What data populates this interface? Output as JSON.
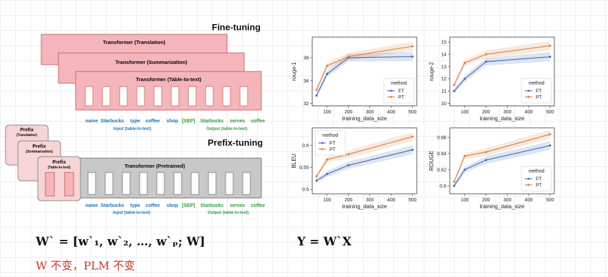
{
  "diagram": {
    "finetune_title": "Fine-tuning",
    "prefixtune_title": "Prefix-tuning",
    "transformers": [
      "Transformer (Translation)",
      "Transformer (Summarization)",
      "Transformer (Table-to-text)"
    ],
    "pretrained": "Transformer (Pretrained)",
    "prefixes": [
      {
        "title": "Prefix",
        "sub": "(Translation)"
      },
      {
        "title": "Prefix",
        "sub": "(Summarization)"
      },
      {
        "title": "Prefix",
        "sub": "(Table-to-text)"
      }
    ],
    "input_tokens": [
      "name",
      "Starbucks",
      "type",
      "coffee",
      "shop"
    ],
    "sep_token": "[SEP]",
    "output_tokens": [
      "Starbucks",
      "serves",
      "coffee"
    ],
    "input_label": "Input (table-to-text)",
    "output_label": "Output (table-to-text)",
    "colors": {
      "finetune_fill": "#f4b6bb",
      "finetune_stroke": "#c66",
      "prefix_fill": "#f4b6bb",
      "pretrained_fill": "#c8c8c8",
      "input": "#1b75bb",
      "output": "#2e9e3a",
      "ft": "#4a6fb5",
      "pt": "#d9834a"
    }
  },
  "formulas": {
    "w_prime": "W` = [w`₁, w`₂, …, w`ₚ; W]",
    "y": "Y = W`X",
    "note": "W 不变，PLM 不变"
  },
  "chart_data": [
    {
      "type": "line",
      "ylabel": "rouge-1",
      "xlabel": "training_data_size",
      "x": [
        50,
        100,
        200,
        500
      ],
      "series": [
        {
          "name": "FT",
          "values": [
            32.7,
            34.6,
            36.0,
            36.1
          ]
        },
        {
          "name": "PT",
          "values": [
            33.2,
            35.3,
            36.1,
            37.0
          ]
        }
      ],
      "xticks": [
        100,
        200,
        300,
        400,
        500
      ],
      "yticks": [
        32,
        34,
        36
      ],
      "xlim": [
        30,
        520
      ],
      "ylim": [
        31.8,
        37.8
      ],
      "legend_title": "method",
      "legend": [
        "FT",
        "PT"
      ],
      "legend_loc": "lower-right"
    },
    {
      "type": "line",
      "ylabel": "rouge-2",
      "xlabel": "training_data_size",
      "x": [
        50,
        100,
        200,
        500
      ],
      "series": [
        {
          "name": "FT",
          "values": [
            11.0,
            12.0,
            13.4,
            13.8
          ]
        },
        {
          "name": "PT",
          "values": [
            11.5,
            13.3,
            14.0,
            14.7
          ]
        }
      ],
      "xticks": [
        100,
        200,
        300,
        400,
        500
      ],
      "yticks": [
        10,
        11,
        12,
        13,
        14,
        15
      ],
      "xlim": [
        30,
        520
      ],
      "ylim": [
        9.8,
        15.4
      ],
      "legend_title": "method",
      "legend": [
        "FT",
        "PT"
      ],
      "legend_loc": "lower-right"
    },
    {
      "type": "line",
      "ylabel": "BLEU",
      "xlabel": "training_data_size",
      "x": [
        50,
        100,
        200,
        500
      ],
      "series": [
        {
          "name": "FT",
          "values": [
            0.52,
            0.535,
            0.555,
            0.59
          ]
        },
        {
          "name": "PT",
          "values": [
            0.53,
            0.568,
            0.58,
            0.62
          ]
        }
      ],
      "xticks": [
        100,
        200,
        300,
        400,
        500
      ],
      "yticks": [
        0.5,
        0.55,
        0.6
      ],
      "xlim": [
        30,
        520
      ],
      "ylim": [
        0.49,
        0.64
      ],
      "legend_title": "method",
      "legend": [
        "FT",
        "PT"
      ],
      "legend_loc": "top-left"
    },
    {
      "type": "line",
      "ylabel": "ROUGE",
      "xlabel": "training_data_size",
      "x": [
        50,
        100,
        200,
        500
      ],
      "series": [
        {
          "name": "FT",
          "values": [
            0.6,
            0.62,
            0.632,
            0.65
          ]
        },
        {
          "name": "PT",
          "values": [
            0.605,
            0.637,
            0.642,
            0.664
          ]
        }
      ],
      "xticks": [
        100,
        200,
        300,
        400,
        500
      ],
      "yticks": [
        0.6,
        0.62,
        0.64,
        0.66
      ],
      "xlim": [
        30,
        520
      ],
      "ylim": [
        0.59,
        0.672
      ],
      "legend_title": "method",
      "legend": [
        "FT",
        "PT"
      ],
      "legend_loc": "lower-right"
    }
  ]
}
